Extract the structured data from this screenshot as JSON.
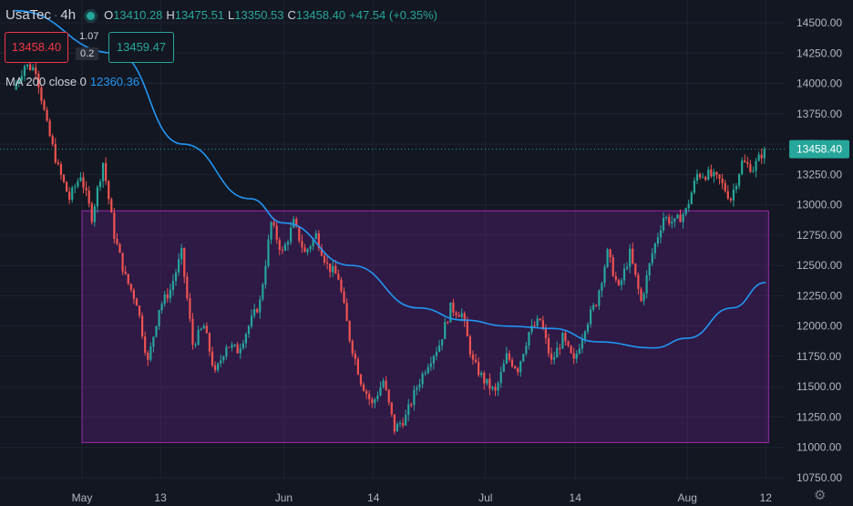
{
  "header": {
    "symbol": "UsaTec",
    "interval": "4h",
    "status_color": "#26a69a",
    "ohlc": {
      "open_label": "O",
      "open": "13410.28",
      "high_label": "H",
      "high": "13475.51",
      "low_label": "L",
      "low": "13350.53",
      "close_label": "C",
      "close": "13458.40",
      "change": "+47.54 (+0.35%)"
    }
  },
  "trade_panel": {
    "sell": "13458.40",
    "spread": "1.07",
    "lot": "0.2",
    "buy": "13459.47"
  },
  "ma_legend": {
    "label": "MA 200 close 0",
    "value": "12360.36"
  },
  "chart_data": {
    "type": "candlestick",
    "y_axis": {
      "min": 10750,
      "max": 14500,
      "ticks": [
        "14500.00",
        "14250.00",
        "14000.00",
        "13750.00",
        "13500.00",
        "13250.00",
        "13000.00",
        "12750.00",
        "12500.00",
        "12250.00",
        "12000.00",
        "11750.00",
        "11500.00",
        "11250.00",
        "11000.00",
        "10750.00"
      ]
    },
    "x_axis": {
      "ticks": [
        "May",
        "13",
        "Jun",
        "14",
        "Jul",
        "14",
        "Aug",
        "12"
      ],
      "tick_positions_index": [
        0,
        7,
        18,
        26,
        36,
        44,
        54,
        61
      ]
    },
    "last_price": {
      "value": 13458.4,
      "label": "13458.40"
    },
    "rectangle": {
      "x_start_index": 0,
      "x_end_index": 61,
      "y_top": 12950,
      "y_bottom": 11040
    },
    "anchors": [
      {
        "i": -6,
        "p": 13950
      },
      {
        "i": -5,
        "p": 14150
      },
      {
        "i": -4,
        "p": 14120
      },
      {
        "i": -3,
        "p": 13650
      },
      {
        "i": -2,
        "p": 13300
      },
      {
        "i": -1,
        "p": 13050
      },
      {
        "i": 0,
        "p": 13250
      },
      {
        "i": 1,
        "p": 12900
      },
      {
        "i": 2,
        "p": 13350
      },
      {
        "i": 3,
        "p": 12750
      },
      {
        "i": 4,
        "p": 12400
      },
      {
        "i": 5,
        "p": 12200
      },
      {
        "i": 6,
        "p": 11700
      },
      {
        "i": 7,
        "p": 12150
      },
      {
        "i": 8,
        "p": 12300
      },
      {
        "i": 9,
        "p": 12600
      },
      {
        "i": 10,
        "p": 11850
      },
      {
        "i": 11,
        "p": 12000
      },
      {
        "i": 12,
        "p": 11600
      },
      {
        "i": 13,
        "p": 11850
      },
      {
        "i": 14,
        "p": 11800
      },
      {
        "i": 15,
        "p": 12000
      },
      {
        "i": 16,
        "p": 12200
      },
      {
        "i": 17,
        "p": 12850
      },
      {
        "i": 18,
        "p": 12600
      },
      {
        "i": 19,
        "p": 12850
      },
      {
        "i": 20,
        "p": 12600
      },
      {
        "i": 21,
        "p": 12750
      },
      {
        "i": 22,
        "p": 12500
      },
      {
        "i": 23,
        "p": 12400
      },
      {
        "i": 24,
        "p": 11900
      },
      {
        "i": 25,
        "p": 11550
      },
      {
        "i": 26,
        "p": 11350
      },
      {
        "i": 27,
        "p": 11550
      },
      {
        "i": 28,
        "p": 11150
      },
      {
        "i": 29,
        "p": 11250
      },
      {
        "i": 30,
        "p": 11500
      },
      {
        "i": 31,
        "p": 11700
      },
      {
        "i": 32,
        "p": 11850
      },
      {
        "i": 33,
        "p": 12150
      },
      {
        "i": 34,
        "p": 12100
      },
      {
        "i": 35,
        "p": 11700
      },
      {
        "i": 36,
        "p": 11550
      },
      {
        "i": 37,
        "p": 11450
      },
      {
        "i": 38,
        "p": 11750
      },
      {
        "i": 39,
        "p": 11650
      },
      {
        "i": 40,
        "p": 11950
      },
      {
        "i": 41,
        "p": 12050
      },
      {
        "i": 42,
        "p": 11700
      },
      {
        "i": 43,
        "p": 11900
      },
      {
        "i": 44,
        "p": 11700
      },
      {
        "i": 45,
        "p": 12000
      },
      {
        "i": 46,
        "p": 12200
      },
      {
        "i": 47,
        "p": 12600
      },
      {
        "i": 48,
        "p": 12300
      },
      {
        "i": 49,
        "p": 12600
      },
      {
        "i": 50,
        "p": 12200
      },
      {
        "i": 51,
        "p": 12600
      },
      {
        "i": 52,
        "p": 12900
      },
      {
        "i": 53,
        "p": 12850
      },
      {
        "i": 54,
        "p": 12950
      },
      {
        "i": 55,
        "p": 13250
      },
      {
        "i": 56,
        "p": 13250
      },
      {
        "i": 57,
        "p": 13200
      },
      {
        "i": 58,
        "p": 13050
      },
      {
        "i": 59,
        "p": 13350
      },
      {
        "i": 60,
        "p": 13300
      },
      {
        "i": 61,
        "p": 13458
      }
    ],
    "ma_line": [
      {
        "i": -6,
        "p": 14600
      },
      {
        "i": 3,
        "p": 14250
      },
      {
        "i": 9,
        "p": 13500
      },
      {
        "i": 15,
        "p": 13050
      },
      {
        "i": 18,
        "p": 12850
      },
      {
        "i": 24,
        "p": 12500
      },
      {
        "i": 30,
        "p": 12150
      },
      {
        "i": 34,
        "p": 12050
      },
      {
        "i": 38,
        "p": 12000
      },
      {
        "i": 42,
        "p": 11980
      },
      {
        "i": 46,
        "p": 11870
      },
      {
        "i": 51,
        "p": 11820
      },
      {
        "i": 54,
        "p": 11900
      },
      {
        "i": 58,
        "p": 12150
      },
      {
        "i": 61,
        "p": 12360
      }
    ],
    "colors": {
      "background": "#131722",
      "grid": "#1f2330",
      "up": "#26a69a",
      "down": "#ef5350",
      "ma": "#2196f3",
      "rect_fill": "rgba(123,31,162,0.28)",
      "rect_border": "#9c27b0",
      "axis_text": "#b2b5be",
      "last_price_bg": "#26a69a"
    }
  }
}
